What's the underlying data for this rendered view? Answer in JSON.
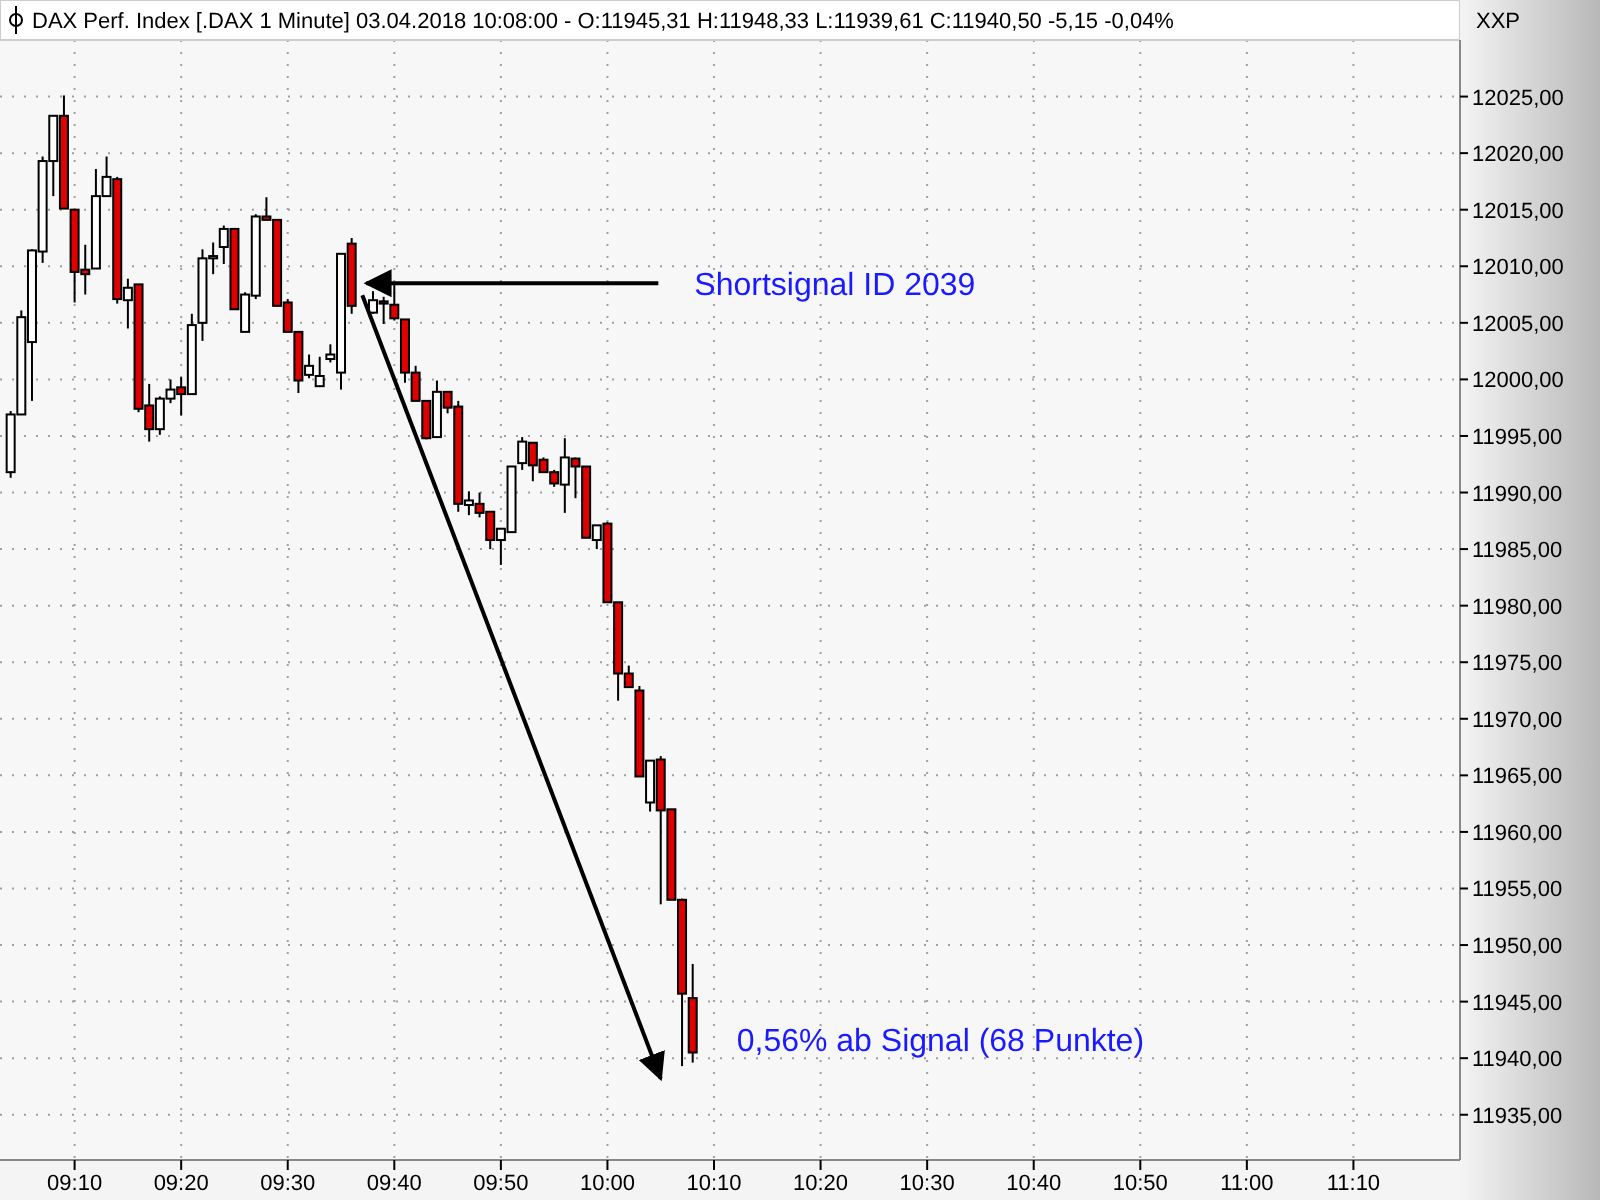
{
  "chart_data": {
    "type": "candlestick",
    "title": "DAX Perf. Index [.DAX  1 Minute] 03.04.2018 10:08:00 - O:11945,31 H:11948,33 L:11939,61 C:11940,50 -5,15 -0,04%",
    "x": [
      "2018-04-03T09:04",
      "2018-04-03T09:05",
      "2018-04-03T09:06",
      "2018-04-03T09:07",
      "2018-04-03T09:08",
      "2018-04-03T09:09",
      "2018-04-03T09:10",
      "2018-04-03T09:11",
      "2018-04-03T09:12",
      "2018-04-03T09:13",
      "2018-04-03T09:14",
      "2018-04-03T09:15",
      "2018-04-03T09:16",
      "2018-04-03T09:17",
      "2018-04-03T09:18",
      "2018-04-03T09:19",
      "2018-04-03T09:20",
      "2018-04-03T09:21",
      "2018-04-03T09:22",
      "2018-04-03T09:23",
      "2018-04-03T09:24",
      "2018-04-03T09:25",
      "2018-04-03T09:26",
      "2018-04-03T09:27",
      "2018-04-03T09:28",
      "2018-04-03T09:29",
      "2018-04-03T09:30",
      "2018-04-03T09:31",
      "2018-04-03T09:32",
      "2018-04-03T09:33",
      "2018-04-03T09:34",
      "2018-04-03T09:35",
      "2018-04-03T09:36",
      "2018-04-03T09:38",
      "2018-04-03T09:39",
      "2018-04-03T09:40",
      "2018-04-03T09:41",
      "2018-04-03T09:42",
      "2018-04-03T09:43",
      "2018-04-03T09:44",
      "2018-04-03T09:45",
      "2018-04-03T09:46",
      "2018-04-03T09:47",
      "2018-04-03T09:48",
      "2018-04-03T09:49",
      "2018-04-03T09:50",
      "2018-04-03T09:51",
      "2018-04-03T09:52",
      "2018-04-03T09:53",
      "2018-04-03T09:54",
      "2018-04-03T09:55",
      "2018-04-03T09:56",
      "2018-04-03T09:57",
      "2018-04-03T09:58",
      "2018-04-03T09:59",
      "2018-04-03T10:00",
      "2018-04-03T10:01",
      "2018-04-03T10:02",
      "2018-04-03T10:03",
      "2018-04-03T10:04",
      "2018-04-03T10:05",
      "2018-04-03T10:06",
      "2018-04-03T10:07",
      "2018-04-03T10:08"
    ],
    "ohlc": [
      [
        11991.8,
        11997.2,
        11991.3,
        11996.9
      ],
      [
        11996.9,
        12006.1,
        11996.9,
        12005.5
      ],
      [
        12003.3,
        12011.5,
        11998.1,
        12011.4
      ],
      [
        12011.3,
        12019.7,
        12010.3,
        12019.3
      ],
      [
        12019.3,
        12023.3,
        12016.2,
        12023.3
      ],
      [
        12023.3,
        12025.1,
        12015.1,
        12015.1
      ],
      [
        12015.0,
        12015.0,
        12006.8,
        12009.5
      ],
      [
        12009.7,
        12011.9,
        12007.5,
        12009.3
      ],
      [
        12009.8,
        12018.6,
        12009.8,
        12016.2
      ],
      [
        12016.2,
        12019.7,
        12016.2,
        12017.9
      ],
      [
        12017.7,
        12017.9,
        12006.7,
        12007.1
      ],
      [
        12007.0,
        12008.9,
        12004.5,
        12008.1
      ],
      [
        12008.4,
        12008.4,
        11997.1,
        11997.4
      ],
      [
        11997.7,
        11999.6,
        11994.5,
        11995.6
      ],
      [
        11995.6,
        11998.5,
        11995.1,
        11998.3
      ],
      [
        11998.3,
        12000.0,
        11997.9,
        11999.1
      ],
      [
        11999.3,
        12000.2,
        11996.8,
        11998.7
      ],
      [
        11998.7,
        12005.8,
        11998.7,
        12004.8
      ],
      [
        12005.0,
        12011.5,
        12003.4,
        12010.7
      ],
      [
        12010.7,
        12012.1,
        12009.3,
        12010.9
      ],
      [
        12011.7,
        12013.6,
        12010.2,
        12013.3
      ],
      [
        12013.3,
        12013.3,
        12006.2,
        12006.2
      ],
      [
        12004.2,
        12007.7,
        12004.2,
        12007.5
      ],
      [
        12007.4,
        12014.6,
        12007.1,
        12014.4
      ],
      [
        12014.4,
        12016.1,
        12014.1,
        12014.1
      ],
      [
        12014.1,
        12014.1,
        12006.5,
        12006.5
      ],
      [
        12006.8,
        12007.1,
        12004.2,
        12004.2
      ],
      [
        12004.2,
        12004.2,
        11998.8,
        11999.9
      ],
      [
        12000.4,
        12002.2,
        12000.1,
        12001.2
      ],
      [
        11999.4,
        12002.0,
        11999.4,
        12000.3
      ],
      [
        12001.8,
        12003.1,
        12001.5,
        12002.2
      ],
      [
        12000.6,
        12011.1,
        11999.1,
        12011.1
      ],
      [
        12012.0,
        12012.5,
        12005.8,
        12006.5
      ],
      [
        12005.9,
        12007.8,
        12005.8,
        12007.0
      ],
      [
        12006.9,
        12007.3,
        12004.9,
        12006.7
      ],
      [
        12006.6,
        12008.4,
        12005.2,
        12005.4
      ],
      [
        12005.3,
        12005.3,
        11999.7,
        12000.6
      ],
      [
        12000.6,
        12001.2,
        11998.1,
        11998.1
      ],
      [
        11998.1,
        11998.1,
        11994.7,
        11994.8
      ],
      [
        11994.9,
        11999.9,
        11994.9,
        11998.9
      ],
      [
        11998.9,
        11998.9,
        11997.0,
        11997.5
      ],
      [
        11997.6,
        11998.1,
        11988.3,
        11989.0
      ],
      [
        11988.9,
        11990.1,
        11988.0,
        11989.3
      ],
      [
        11989.0,
        11990.0,
        11987.8,
        11988.2
      ],
      [
        11988.3,
        11988.3,
        11985.0,
        11985.8
      ],
      [
        11985.8,
        11986.8,
        11983.6,
        11986.8
      ],
      [
        11986.5,
        11992.3,
        11986.5,
        11992.3
      ],
      [
        11992.6,
        11994.9,
        11992.0,
        11994.5
      ],
      [
        11994.4,
        11994.4,
        11991.0,
        11992.4
      ],
      [
        11992.9,
        11993.1,
        11991.8,
        11991.8
      ],
      [
        11991.8,
        11992.0,
        11990.5,
        11990.8
      ],
      [
        11990.7,
        11994.8,
        11988.2,
        11993.1
      ],
      [
        11993.0,
        11993.1,
        11989.5,
        11992.3
      ],
      [
        11992.3,
        11992.3,
        11986.0,
        11986.0
      ],
      [
        11985.8,
        11987.1,
        11985.0,
        11987.1
      ],
      [
        11987.25,
        11987.4,
        11980.3,
        11980.3
      ],
      [
        11980.3,
        11980.3,
        11971.6,
        11974.0
      ],
      [
        11974.0,
        11974.7,
        11972.8,
        11972.8
      ],
      [
        11972.5,
        11972.9,
        11964.9,
        11964.9
      ],
      [
        11962.6,
        11966.3,
        11961.8,
        11966.3
      ],
      [
        11966.4,
        11966.7,
        11953.6,
        11961.9
      ],
      [
        11962.0,
        11962.0,
        11954.0,
        11954.0
      ],
      [
        11954.0,
        11954.1,
        11939.3,
        11945.7
      ],
      [
        11945.31,
        11948.33,
        11939.61,
        11940.5
      ]
    ],
    "colors": [
      "#ffffff",
      "#ffffff",
      "#ffffff",
      "#ffffff",
      "#ffffff",
      "#e00000",
      "#e00000",
      "#e00000",
      "#ffffff",
      "#ffffff",
      "#e00000",
      "#ffffff",
      "#e00000",
      "#e00000",
      "#ffffff",
      "#ffffff",
      "#e00000",
      "#ffffff",
      "#ffffff",
      "#ffffff",
      "#ffffff",
      "#e00000",
      "#ffffff",
      "#ffffff",
      "#e00000",
      "#e00000",
      "#e00000",
      "#e00000",
      "#ffffff",
      "#ffffff",
      "#ffffff",
      "#ffffff",
      "#e00000",
      "#ffffff",
      "#e00000",
      "#e00000",
      "#e00000",
      "#e00000",
      "#e00000",
      "#ffffff",
      "#e00000",
      "#e00000",
      "#ffffff",
      "#e00000",
      "#e00000",
      "#ffffff",
      "#ffffff",
      "#ffffff",
      "#e00000",
      "#e00000",
      "#e00000",
      "#ffffff",
      "#e00000",
      "#e00000",
      "#ffffff",
      "#e00000",
      "#e00000",
      "#e00000",
      "#e00000",
      "#ffffff",
      "#e00000",
      "#e00000",
      "#e00000",
      "#e00000"
    ],
    "xlim": [
      "2018-04-03T09:03",
      "2018-04-03T11:20"
    ],
    "xticks": [
      {
        "value": "2018-04-03T09:10",
        "label": "09:10"
      },
      {
        "value": "2018-04-03T09:20",
        "label": "09:20"
      },
      {
        "value": "2018-04-03T09:30",
        "label": "09:30"
      },
      {
        "value": "2018-04-03T09:40",
        "label": "09:40"
      },
      {
        "value": "2018-04-03T09:50",
        "label": "09:50"
      },
      {
        "value": "2018-04-03T10:00",
        "label": "10:00"
      },
      {
        "value": "2018-04-03T10:10",
        "label": "10:10"
      },
      {
        "value": "2018-04-03T10:20",
        "label": "10:20"
      },
      {
        "value": "2018-04-03T10:30",
        "label": "10:30"
      },
      {
        "value": "2018-04-03T10:40",
        "label": "10:40"
      },
      {
        "value": "2018-04-03T10:50",
        "label": "10:50"
      },
      {
        "value": "2018-04-03T11:00",
        "label": "11:00"
      },
      {
        "value": "2018-04-03T11:10",
        "label": "11:10"
      }
    ],
    "ylim": [
      11931,
      12030
    ],
    "yticks": [
      {
        "value": 11935,
        "label": "11935,00"
      },
      {
        "value": 11940,
        "label": "11940,00"
      },
      {
        "value": 11945,
        "label": "11945,00"
      },
      {
        "value": 11950,
        "label": "11950,00"
      },
      {
        "value": 11955,
        "label": "11955,00"
      },
      {
        "value": 11960,
        "label": "11960,00"
      },
      {
        "value": 11965,
        "label": "11965,00"
      },
      {
        "value": 11970,
        "label": "11970,00"
      },
      {
        "value": 11975,
        "label": "11975,00"
      },
      {
        "value": 11980,
        "label": "11980,00"
      },
      {
        "value": 11985,
        "label": "11985,00"
      },
      {
        "value": 11990,
        "label": "11990,00"
      },
      {
        "value": 11995,
        "label": "11995,00"
      },
      {
        "value": 12000,
        "label": "12000,00"
      },
      {
        "value": 12005,
        "label": "12005,00"
      },
      {
        "value": 12010,
        "label": "12010,00"
      },
      {
        "value": 12015,
        "label": "12015,00"
      },
      {
        "value": 12020,
        "label": "12020,00"
      },
      {
        "value": 12025,
        "label": "12025,00"
      }
    ],
    "grid": true,
    "annotations": [
      {
        "text": "Shortsignal ID 2039",
        "x": "2018-04-03T09:37",
        "y": 12008.5
      },
      "0,56% ab Signal (68 Punkte)",
      "XXP"
    ]
  }
}
